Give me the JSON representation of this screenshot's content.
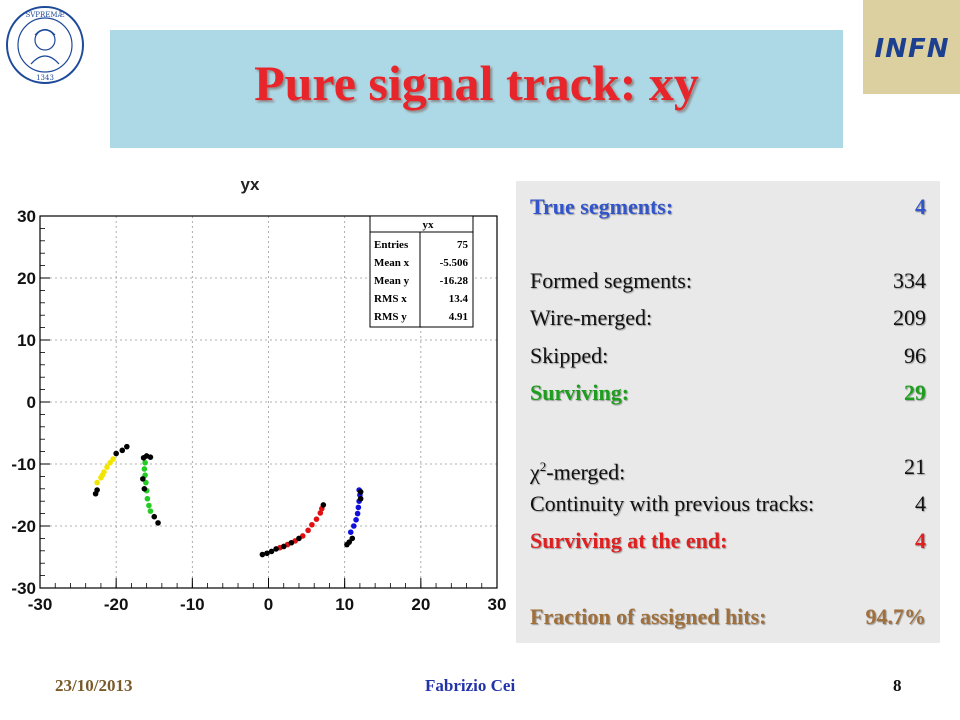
{
  "slide": {
    "title": "Pure signal track: xy",
    "footer": {
      "date": "23/10/2013",
      "author": "Fabrizio Cei",
      "page": "8"
    },
    "logo_right": "INFN",
    "logo_left": {
      "ring_text": "IN SUPREMÆ DIGNITATIS",
      "year": "1343"
    }
  },
  "stats_box": {
    "true_segments": {
      "label": "True segments:",
      "value": "4"
    },
    "formed_segments": {
      "label": "Formed segments:",
      "value": "334"
    },
    "wire_merged": {
      "label": "Wire-merged:",
      "value": "209"
    },
    "skipped": {
      "label": "Skipped:",
      "value": "96"
    },
    "surviving": {
      "label": "Surviving:",
      "value": "29"
    },
    "chi2_merged": {
      "label_symbol": "χ",
      "label_sup": "2",
      "label_rest": "-merged:",
      "value": "21"
    },
    "continuity": {
      "label": "Continuity with previous tracks:",
      "value": "4"
    },
    "surviving_end": {
      "label": "Surviving at the end:",
      "value": "4"
    },
    "fraction": {
      "label": "Fraction of assigned hits:",
      "value": "94.7%"
    }
  },
  "chart_data": {
    "type": "scatter",
    "title": "yx",
    "xlim": [
      -30,
      30
    ],
    "ylim": [
      -30,
      30
    ],
    "x_ticks": [
      "-30",
      "-20",
      "-10",
      "0",
      "10",
      "20",
      "30"
    ],
    "y_ticks": [
      "30",
      "20",
      "10",
      "0",
      "-10",
      "-20",
      "-30"
    ],
    "grid": true,
    "stats_legend": {
      "name": "yx",
      "rows": [
        {
          "label": "Entries",
          "value": "75"
        },
        {
          "label": "Mean x",
          "value": "-5.506"
        },
        {
          "label": "Mean y",
          "value": "-16.28"
        },
        {
          "label": "RMS x",
          "value": "13.4"
        },
        {
          "label": "RMS y",
          "value": "4.91"
        }
      ]
    },
    "series": [
      {
        "color": "#f2e600",
        "points": [
          [
            -22.5,
            -13
          ],
          [
            -22,
            -12.2
          ],
          [
            -21.6,
            -11.3
          ],
          [
            -21.2,
            -10.5
          ],
          [
            -20.8,
            -9.8
          ],
          [
            -20.4,
            -9.2
          ],
          [
            -21.8,
            -11.8
          ]
        ]
      },
      {
        "color": "#000000",
        "points": [
          [
            -22.7,
            -14.8
          ],
          [
            -22.5,
            -14.2
          ],
          [
            -20,
            -8.3
          ],
          [
            -19.2,
            -7.8
          ],
          [
            -18.6,
            -7.2
          ]
        ]
      },
      {
        "color": "#22cc22",
        "points": [
          [
            -16.2,
            -9.8
          ],
          [
            -16.3,
            -10.8
          ],
          [
            -16.2,
            -11.8
          ],
          [
            -16.1,
            -13
          ],
          [
            -16,
            -14.3
          ],
          [
            -15.9,
            -15.6
          ],
          [
            -15.7,
            -16.7
          ],
          [
            -15.5,
            -17.6
          ]
        ]
      },
      {
        "color": "#000000",
        "points": [
          [
            -16.4,
            -9
          ],
          [
            -16,
            -8.7
          ],
          [
            -15.5,
            -8.9
          ],
          [
            -16.5,
            -12.4
          ],
          [
            -16.3,
            -14
          ],
          [
            -15,
            -18.5
          ],
          [
            -14.5,
            -19.5
          ]
        ]
      },
      {
        "color": "#e01010",
        "points": [
          [
            1.5,
            -23.5
          ],
          [
            2.5,
            -23
          ],
          [
            3.5,
            -22.4
          ],
          [
            4.5,
            -21.6
          ],
          [
            5.2,
            -20.7
          ],
          [
            5.7,
            -19.8
          ],
          [
            6.3,
            -18.9
          ],
          [
            6.8,
            -17.9
          ],
          [
            7,
            -17.2
          ]
        ]
      },
      {
        "color": "#000000",
        "points": [
          [
            -0.8,
            -24.6
          ],
          [
            -0.2,
            -24.4
          ],
          [
            0.4,
            -24.1
          ],
          [
            1,
            -23.7
          ],
          [
            2,
            -23.3
          ],
          [
            3,
            -22.7
          ],
          [
            4,
            -22
          ],
          [
            7.2,
            -16.6
          ]
        ]
      },
      {
        "color": "#1010dd",
        "points": [
          [
            10.8,
            -21
          ],
          [
            11.2,
            -20
          ],
          [
            11.5,
            -19
          ],
          [
            11.7,
            -18
          ],
          [
            11.8,
            -17
          ],
          [
            11.9,
            -16
          ],
          [
            12,
            -15
          ],
          [
            11.9,
            -14.2
          ]
        ]
      },
      {
        "color": "#000000",
        "points": [
          [
            10.3,
            -23
          ],
          [
            10.6,
            -22.6
          ],
          [
            11,
            -22
          ],
          [
            12.1,
            -15.6
          ],
          [
            12.1,
            -14.5
          ]
        ]
      }
    ]
  }
}
